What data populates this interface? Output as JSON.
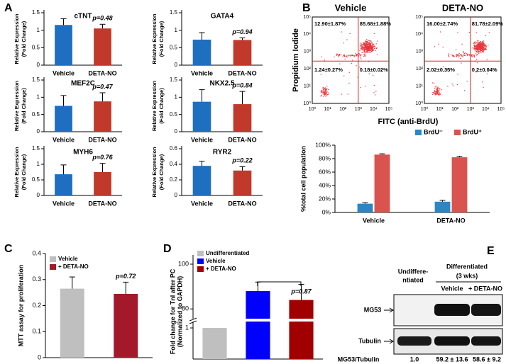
{
  "panel_labels": [
    "A",
    "B",
    "C",
    "D",
    "E"
  ],
  "chart_data": [
    {
      "type": "bar",
      "title": "cTNT",
      "ylabel": [
        "Relative Expression",
        "(Fold Change)"
      ],
      "categories": [
        "Vehicle",
        "DETA-NO"
      ],
      "values": [
        1.15,
        1.05
      ],
      "errors": [
        0.18,
        0.12
      ],
      "colors": [
        "#1f6fc0",
        "#c0392b"
      ],
      "ylim": [
        0,
        1.5
      ],
      "yticks": [
        0,
        0.5,
        1,
        1.5
      ],
      "annotation": "p=0.48"
    },
    {
      "type": "bar",
      "title": "GATA4",
      "ylabel": [
        "Relative Expression",
        "(Fold Change)"
      ],
      "categories": [
        "Vehicle",
        "DETA-NO"
      ],
      "values": [
        0.73,
        0.72
      ],
      "errors": [
        0.2,
        0.06
      ],
      "colors": [
        "#1f6fc0",
        "#c0392b"
      ],
      "ylim": [
        0,
        1.5
      ],
      "yticks": [
        0,
        0.5,
        1,
        1.5
      ],
      "annotation": "p=0.94"
    },
    {
      "type": "bar",
      "title": "MEF2C",
      "ylabel": [
        "Relative Expression",
        "(Fold Change)"
      ],
      "categories": [
        "Vehicle",
        "DETA-NO"
      ],
      "values": [
        0.75,
        0.88
      ],
      "errors": [
        0.3,
        0.25
      ],
      "colors": [
        "#1f6fc0",
        "#c0392b"
      ],
      "ylim": [
        0,
        1.5
      ],
      "yticks": [
        0,
        0.5,
        1,
        1.5
      ],
      "annotation": "p=0.47"
    },
    {
      "type": "bar",
      "title": "NKX2.5",
      "ylabel": [
        "Relative Expression",
        "(Fold Change)"
      ],
      "categories": [
        "Vehicle",
        "DETA-NO"
      ],
      "values": [
        0.87,
        0.8
      ],
      "errors": [
        0.35,
        0.37
      ],
      "colors": [
        "#1f6fc0",
        "#c0392b"
      ],
      "ylim": [
        0,
        1.5
      ],
      "yticks": [
        0,
        0.5,
        1,
        1.5
      ],
      "annotation": "p=0.84"
    },
    {
      "type": "bar",
      "title": "MYH6",
      "ylabel": [
        "Relative Expression",
        "(Fold Change)"
      ],
      "categories": [
        "Vehicle",
        "DETA-NO"
      ],
      "values": [
        0.68,
        0.75
      ],
      "errors": [
        0.3,
        0.28
      ],
      "colors": [
        "#1f6fc0",
        "#c0392b"
      ],
      "ylim": [
        0,
        1.5
      ],
      "yticks": [
        0,
        0.5,
        1,
        1.5
      ],
      "annotation": "p=0.76"
    },
    {
      "type": "bar",
      "title": "RYR2",
      "ylabel": [
        "Relative Expression",
        "(Fold Change)"
      ],
      "categories": [
        "Vehicle",
        "DETA-NO"
      ],
      "values": [
        0.38,
        0.32
      ],
      "errors": [
        0.06,
        0.05
      ],
      "colors": [
        "#1f6fc0",
        "#c0392b"
      ],
      "ylim": [
        0,
        0.6
      ],
      "yticks": [
        0,
        0.2,
        0.4,
        0.6
      ],
      "annotation": "p=0.22"
    },
    {
      "type": "bar",
      "ylabel": "%total cell population",
      "categories": [
        "Vehicle",
        "DETA-NO"
      ],
      "legend": "top-right",
      "series": [
        {
          "name": "BrdU⁻",
          "color": "#2e86c1",
          "values": [
            13,
            16
          ],
          "errors": [
            1.5,
            2
          ]
        },
        {
          "name": "BrdU⁺",
          "color": "#d9534f",
          "values": [
            86,
            82
          ],
          "errors": [
            1.2,
            1.5
          ]
        }
      ],
      "ylim": [
        0,
        100
      ],
      "yticks": [
        {
          "value": 0,
          "label": "0%"
        },
        {
          "value": 20,
          "label": "20%"
        },
        {
          "value": 40,
          "label": "40%"
        },
        {
          "value": 60,
          "label": "60%"
        },
        {
          "value": 80,
          "label": "80%"
        },
        {
          "value": 100,
          "label": "100%"
        }
      ]
    },
    {
      "type": "bar",
      "ylabel": "MTT assay for proliferation",
      "legend": "top-left",
      "series": [
        {
          "name": "Vehicle",
          "color": "#bfbfbf",
          "values": [
            0.265
          ],
          "errors": [
            0.045
          ]
        },
        {
          "name": "+ DETA-NO",
          "color": "#a3182a",
          "values": [
            0.245
          ],
          "errors": [
            0.045
          ]
        }
      ],
      "ylim": [
        0,
        0.4
      ],
      "yticks": [
        0,
        0.1,
        0.2,
        0.3,
        0.4
      ],
      "annotation": "p=0.72"
    },
    {
      "type": "bar",
      "ylabel": [
        "Fold change for TnI after PC",
        "(Normalized to GAPDH)"
      ],
      "legend": "top-left",
      "series": [
        {
          "name": "Undifferentiated",
          "color": "#bfbfbf",
          "values": [
            1
          ]
        },
        {
          "name": "Vehicle",
          "color": "#0000ff",
          "values": [
            88
          ],
          "errors": [
            4
          ]
        },
        {
          "name": "+ DETA-NO",
          "color": "#a00000",
          "values": [
            84
          ],
          "errors": [
            7
          ]
        }
      ],
      "ylim": [
        0,
        100
      ],
      "ybreak": [
        1.25,
        75
      ],
      "yticks": [
        1,
        80,
        100
      ],
      "annotation": "p=0.87"
    }
  ],
  "flow": {
    "xlabel": "FITC (anti-BrdU)",
    "ylabel": "Propidium Iodide",
    "ticks": [
      "10⁰",
      "10¹",
      "10²",
      "10³",
      "10⁴",
      "10⁵"
    ],
    "plots": [
      {
        "title": "Vehicle",
        "quadrants": [
          "12.90±1.87%",
          "85.68±1.88%",
          "1.24±0.27%",
          "0.18±0.02%"
        ]
      },
      {
        "title": "DETA-NO",
        "quadrants": [
          "16.00±2.74%",
          "81.78±2.09%",
          "2.02±0.35%",
          "0.2±0.04%"
        ]
      }
    ]
  },
  "blot": {
    "undifferentiated": [
      "Undiffere-",
      "ntiated"
    ],
    "group": "Differentiated",
    "duration": "(3 wks)",
    "lanes": [
      "Vehicle",
      "+ DETA-NO"
    ],
    "rows": [
      "MG53",
      "Tubulin"
    ],
    "ratio_label": "MG53/Tubulin",
    "ratios": [
      "1.0",
      "59.2 ± 13.6",
      "58.6 ± 9.2"
    ]
  }
}
